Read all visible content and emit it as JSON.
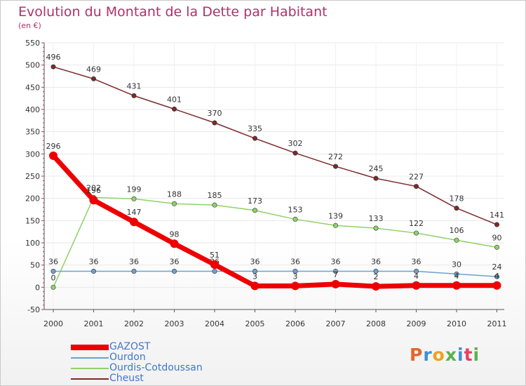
{
  "header": {
    "title": "Evolution du Montant de la Dette par Habitant",
    "subtitle": "(en €)"
  },
  "logo": {
    "text": "Proxiti",
    "colors": [
      "#e8642a",
      "#3d8fd6",
      "#f0a020",
      "#5ab24a",
      "#3d8fd6",
      "#e84060",
      "#5ab24a"
    ]
  },
  "colors": {
    "title": "#b0306c",
    "axis": "#555555",
    "grid": "#e8e8e8",
    "tick": "#b0306c"
  },
  "chart_data": {
    "type": "line",
    "title": "Evolution du Montant de la Dette par Habitant",
    "ylabel": "(en €)",
    "ylim": [
      -50,
      550
    ],
    "yticks": [
      -50,
      0,
      50,
      100,
      150,
      200,
      250,
      300,
      350,
      400,
      450,
      500,
      550
    ],
    "x": [
      "2000",
      "2001",
      "2002",
      "2003",
      "2004",
      "2005",
      "2006",
      "2007",
      "2008",
      "2009",
      "2010",
      "2011"
    ],
    "grid": true,
    "legend_position": "bottom-left",
    "series": [
      {
        "name": "Cheust",
        "color": "#7b2a2a",
        "values": [
          496,
          469,
          431,
          401,
          370,
          335,
          302,
          272,
          245,
          227,
          178,
          141
        ],
        "labels": [
          "496",
          "469",
          "431",
          "401",
          "370",
          "335",
          "302",
          "272",
          "245",
          "227",
          "178",
          "141"
        ]
      },
      {
        "name": "Ourdis-Cotdoussan",
        "color": "#8fd16a",
        "values": [
          0,
          202,
          199,
          188,
          185,
          173,
          153,
          139,
          133,
          122,
          106,
          90
        ],
        "labels": [
          "0",
          "202",
          "199",
          "188",
          "185",
          "173",
          "153",
          "139",
          "133",
          "122",
          "106",
          "90"
        ]
      },
      {
        "name": "Ourdon",
        "color": "#6fa0cf",
        "values": [
          36,
          36,
          36,
          36,
          36,
          36,
          36,
          36,
          36,
          36,
          30,
          24
        ],
        "labels": [
          "36",
          "36",
          "36",
          "36",
          "36",
          "36",
          "36",
          "36",
          "36",
          "36",
          "30",
          "24"
        ]
      },
      {
        "name": "GAZOST",
        "color": "#ee0000",
        "values": [
          296,
          196,
          147,
          98,
          51,
          3,
          3,
          7,
          2,
          4,
          4,
          4
        ],
        "labels": [
          "296",
          "196",
          "147",
          "98",
          "51",
          "3",
          "3",
          "7",
          "2",
          "4",
          "4",
          "4"
        ]
      }
    ],
    "legend_order": [
      "GAZOST",
      "Ourdon",
      "Ourdis-Cotdoussan",
      "Cheust"
    ]
  }
}
